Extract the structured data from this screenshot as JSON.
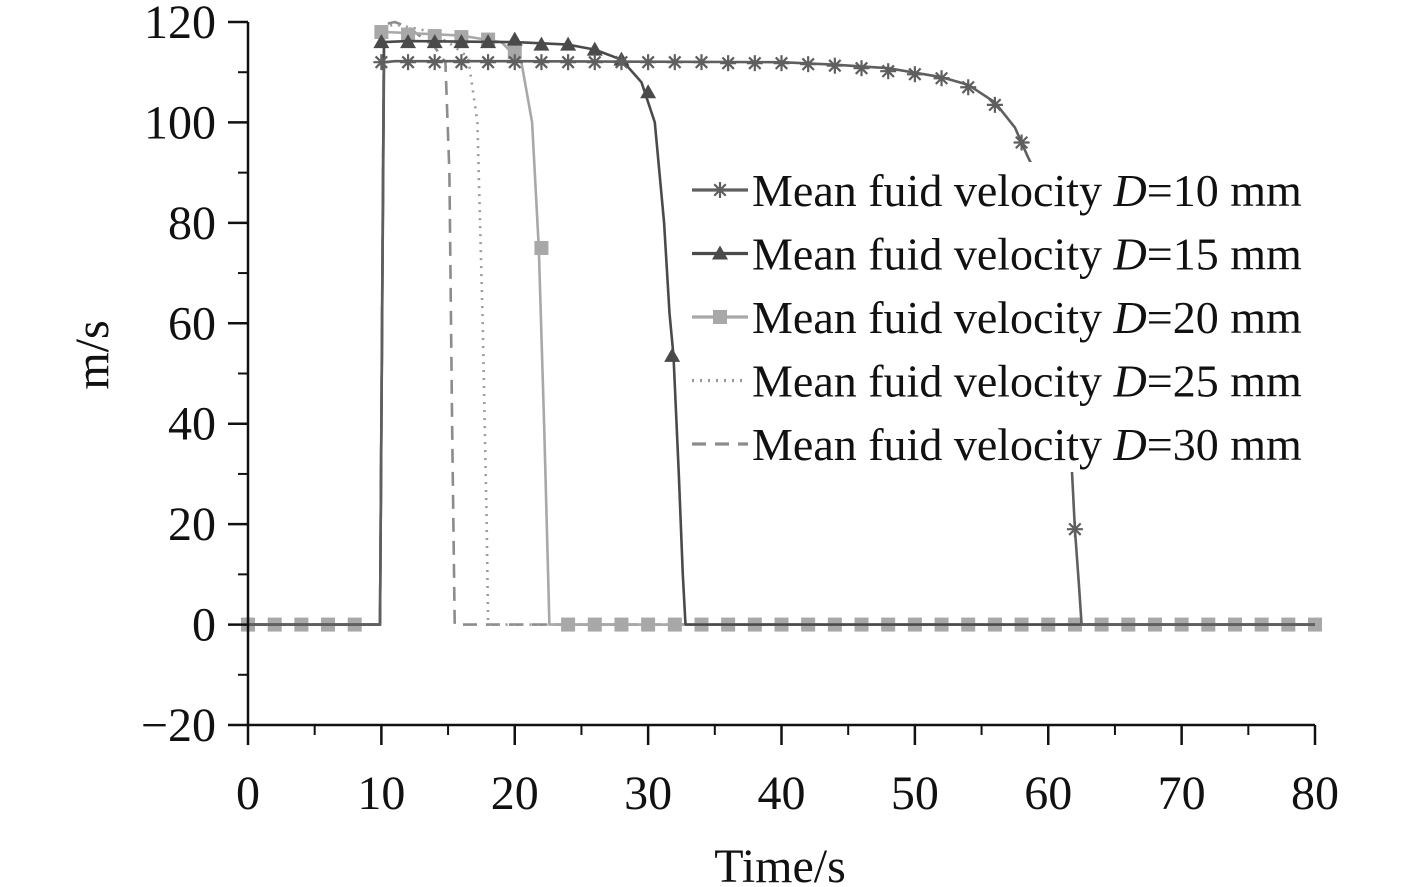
{
  "chart_data": {
    "type": "line",
    "title": "",
    "xlabel": "Time/s",
    "ylabel": "m/s",
    "xlim": [
      0,
      80
    ],
    "ylim": [
      -20,
      120
    ],
    "xticks": [
      0,
      10,
      20,
      30,
      40,
      50,
      60,
      70,
      80
    ],
    "yticks": [
      -20,
      0,
      20,
      40,
      60,
      80,
      100,
      120
    ],
    "xtick_labels": [
      "0",
      "10",
      "20",
      "30",
      "40",
      "50",
      "60",
      "70",
      "80"
    ],
    "ytick_labels": [
      "−20",
      "0",
      "20",
      "40",
      "60",
      "80",
      "100",
      "120"
    ],
    "grid": false,
    "legend_position": "right",
    "series": [
      {
        "name": "Mean fuid velocity D=10 mm",
        "label_prefix": "Mean fuid velocity ",
        "label_var": "D",
        "label_suffix": "=10 mm",
        "color": "#5f5f5f",
        "dash": "solid",
        "marker": "star",
        "points": [
          [
            0,
            0
          ],
          [
            9.9,
            0
          ],
          [
            10.2,
            112
          ],
          [
            11,
            112.2
          ],
          [
            20,
            112.2
          ],
          [
            30,
            112.1
          ],
          [
            40,
            112
          ],
          [
            44,
            111.5
          ],
          [
            48,
            110.8
          ],
          [
            52,
            109
          ],
          [
            54,
            107.5
          ],
          [
            56,
            104
          ],
          [
            57.5,
            99
          ],
          [
            58.5,
            93
          ],
          [
            60,
            85
          ],
          [
            61,
            70
          ],
          [
            61.5,
            45
          ],
          [
            62,
            19
          ],
          [
            62.3,
            8
          ],
          [
            62.5,
            0
          ],
          [
            80,
            0
          ]
        ],
        "markers": [
          [
            10,
            112
          ],
          [
            12,
            112
          ],
          [
            14,
            112
          ],
          [
            16,
            112
          ],
          [
            18,
            112
          ],
          [
            20,
            112
          ],
          [
            22,
            112
          ],
          [
            24,
            112
          ],
          [
            26,
            112
          ],
          [
            28,
            112
          ],
          [
            30,
            112
          ],
          [
            32,
            112
          ],
          [
            34,
            112
          ],
          [
            36,
            111.8
          ],
          [
            38,
            111.8
          ],
          [
            40,
            111.8
          ],
          [
            42,
            111.6
          ],
          [
            44,
            111.3
          ],
          [
            46,
            110.8
          ],
          [
            48,
            110.2
          ],
          [
            50,
            109.6
          ],
          [
            52,
            108.8
          ],
          [
            54,
            107
          ],
          [
            56,
            103.5
          ],
          [
            58,
            96
          ],
          [
            62,
            19
          ]
        ]
      },
      {
        "name": "Mean fuid velocity D=15 mm",
        "label_prefix": "Mean fuid velocity ",
        "label_var": "D",
        "label_suffix": "=15 mm",
        "color": "#4a4a4a",
        "dash": "solid",
        "marker": "triangle",
        "points": [
          [
            0,
            0
          ],
          [
            9.9,
            0
          ],
          [
            10.2,
            116
          ],
          [
            12,
            116.2
          ],
          [
            20,
            116
          ],
          [
            24,
            115.5
          ],
          [
            26,
            114.5
          ],
          [
            28,
            112.5
          ],
          [
            29.5,
            108
          ],
          [
            30.5,
            100
          ],
          [
            31.2,
            80
          ],
          [
            31.6,
            62
          ],
          [
            31.9,
            53.5
          ],
          [
            32.3,
            30
          ],
          [
            32.6,
            10
          ],
          [
            32.8,
            0
          ],
          [
            80,
            0
          ]
        ],
        "markers": [
          [
            10,
            116
          ],
          [
            12,
            116
          ],
          [
            14,
            116
          ],
          [
            16,
            116
          ],
          [
            18,
            116
          ],
          [
            20,
            116.5
          ],
          [
            22,
            115.5
          ],
          [
            24,
            115.5
          ],
          [
            26,
            114.5
          ],
          [
            28,
            112.5
          ],
          [
            30,
            106
          ],
          [
            31.8,
            53.5
          ]
        ]
      },
      {
        "name": "Mean fuid velocity D=20 mm",
        "label_prefix": "Mean fuid velocity ",
        "label_var": "D",
        "label_suffix": "=20 mm",
        "color": "#a8a8a8",
        "dash": "solid",
        "marker": "square",
        "points": [
          [
            0,
            0
          ],
          [
            9.9,
            0
          ],
          [
            10.2,
            118
          ],
          [
            12,
            117.8
          ],
          [
            16,
            117.3
          ],
          [
            19,
            116
          ],
          [
            20.5,
            112
          ],
          [
            21.3,
            100
          ],
          [
            21.8,
            75
          ],
          [
            22.2,
            40
          ],
          [
            22.5,
            10
          ],
          [
            22.6,
            0
          ],
          [
            80,
            0
          ]
        ],
        "markers": [
          [
            0,
            0
          ],
          [
            2,
            0
          ],
          [
            4,
            0
          ],
          [
            6,
            0
          ],
          [
            8,
            0
          ],
          [
            10,
            118
          ],
          [
            12,
            117.5
          ],
          [
            14,
            117.2
          ],
          [
            16,
            117
          ],
          [
            18,
            116.5
          ],
          [
            20,
            114
          ],
          [
            22,
            75
          ],
          [
            24,
            0
          ],
          [
            26,
            0
          ],
          [
            28,
            0
          ],
          [
            30,
            0
          ],
          [
            32,
            0
          ],
          [
            34,
            0
          ],
          [
            36,
            0
          ],
          [
            38,
            0
          ],
          [
            40,
            0
          ],
          [
            42,
            0
          ],
          [
            44,
            0
          ],
          [
            46,
            0
          ],
          [
            48,
            0
          ],
          [
            50,
            0
          ],
          [
            52,
            0
          ],
          [
            54,
            0
          ],
          [
            56,
            0
          ],
          [
            58,
            0
          ],
          [
            60,
            0
          ],
          [
            62,
            0
          ],
          [
            64,
            0
          ],
          [
            66,
            0
          ],
          [
            68,
            0
          ],
          [
            70,
            0
          ],
          [
            72,
            0
          ],
          [
            74,
            0
          ],
          [
            76,
            0
          ],
          [
            78,
            0
          ],
          [
            80,
            0
          ]
        ]
      },
      {
        "name": "Mean fuid velocity D=25 mm",
        "label_prefix": "Mean fuid velocity ",
        "label_var": "D",
        "label_suffix": "=25 mm",
        "color": "#9a9a9a",
        "dash": "dot",
        "marker": "none",
        "points": [
          [
            0,
            0
          ],
          [
            9.9,
            0
          ],
          [
            10.2,
            119
          ],
          [
            11,
            119.5
          ],
          [
            13,
            118.5
          ],
          [
            15,
            116
          ],
          [
            16.5,
            113
          ],
          [
            17.2,
            100
          ],
          [
            17.6,
            60
          ],
          [
            17.9,
            20
          ],
          [
            18,
            0
          ],
          [
            80,
            0
          ]
        ],
        "markers": []
      },
      {
        "name": "Mean fuid velocity D=30 mm",
        "label_prefix": "Mean fuid velocity ",
        "label_var": "D",
        "label_suffix": "=30 mm",
        "color": "#8c8c8c",
        "dash": "dash",
        "marker": "none",
        "points": [
          [
            0,
            0
          ],
          [
            9.9,
            0
          ],
          [
            10.2,
            119.5
          ],
          [
            11,
            120
          ],
          [
            12,
            119
          ],
          [
            14,
            115
          ],
          [
            14.8,
            112
          ],
          [
            15.1,
            90
          ],
          [
            15.3,
            40
          ],
          [
            15.5,
            0
          ],
          [
            80,
            0
          ]
        ],
        "markers": []
      }
    ]
  }
}
